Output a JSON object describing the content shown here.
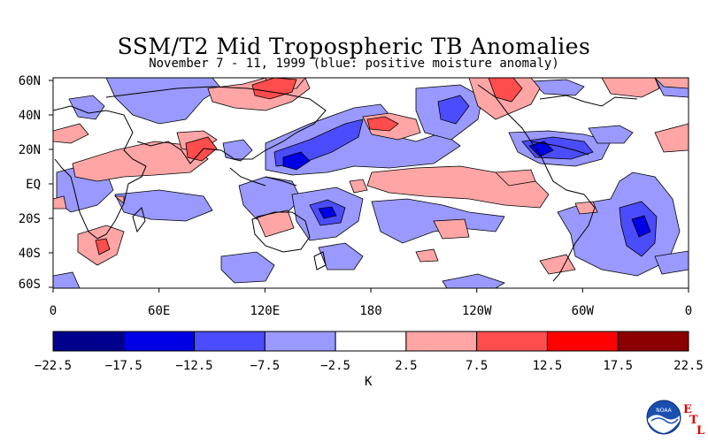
{
  "title": "SSM/T2 Mid Tropospheric TB Anomalies",
  "subtitle": "November 7 - 11, 1999 (blue: positive moisture anomaly)",
  "map": {
    "lat_labels": [
      "60N",
      "40N",
      "20N",
      "EQ",
      "20S",
      "40S",
      "60S"
    ],
    "lon_labels": [
      "0",
      "60E",
      "120E",
      "180",
      "120W",
      "60W",
      "0"
    ]
  },
  "colorbar": {
    "unit": "K",
    "tick_labels": [
      "-22.5",
      "-17.5",
      "-12.5",
      "-7.5",
      "-2.5",
      "2.5",
      "7.5",
      "12.5",
      "17.5",
      "22.5"
    ],
    "colors": [
      "#00008c",
      "#0000e6",
      "#4c4cff",
      "#9999ff",
      "#ffffff",
      "#ffa5a5",
      "#ff4c4c",
      "#ff0000",
      "#8c0000"
    ]
  },
  "logo": {
    "name": "noaa-logo",
    "text": "NOAA",
    "letters": [
      "E",
      "T",
      "L"
    ]
  },
  "colors": {
    "positive_moisture": "#5a5aff",
    "negative_moisture": "#ffa5a5"
  }
}
